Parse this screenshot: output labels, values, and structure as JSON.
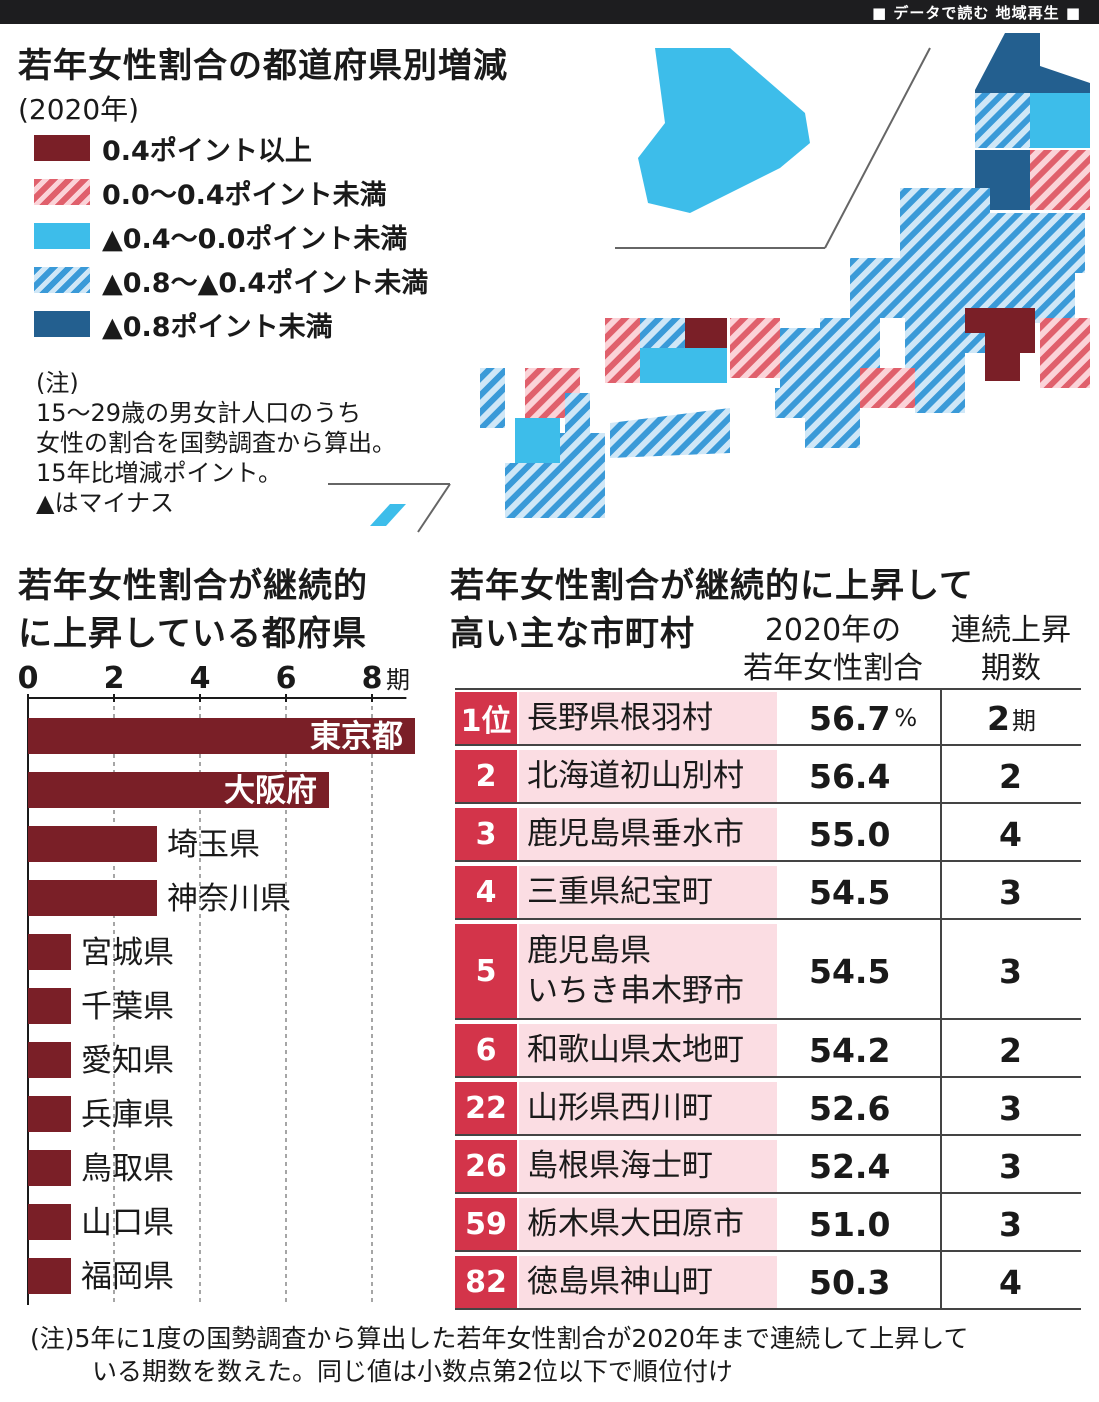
{
  "header": {
    "label": "■ データで読む 地域再生 ■"
  },
  "map_section": {
    "title": "若年女性割合の都道府県別増減",
    "subtitle": "(2020年)",
    "legend": [
      {
        "label": "0.4ポイント以上",
        "color": "#7a1f27",
        "pattern": "solid"
      },
      {
        "label": "0.0〜0.4ポイント未満",
        "color": "#e0606c",
        "pattern": "hatch"
      },
      {
        "label": "▲0.4〜0.0ポイント未満",
        "color": "#3dbdea",
        "pattern": "solid"
      },
      {
        "label": "▲0.8〜▲0.4ポイント未満",
        "color": "#3a9ad8",
        "pattern": "hatch"
      },
      {
        "label": "▲0.8ポイント未満",
        "color": "#235f8f",
        "pattern": "solid"
      }
    ],
    "note": [
      "(注)",
      "15〜29歳の男女計人口のうち",
      "女性の割合を国勢調査から算出。",
      "15年比増減ポイント。",
      "▲はマイナス"
    ]
  },
  "bar_chart_title": [
    "若年女性割合が継続的",
    "に上昇している都府県"
  ],
  "chart_data": [
    {
      "type": "bar",
      "title": "若年女性割合が継続的に上昇している都府県",
      "orientation": "horizontal",
      "categories": [
        "東京都",
        "大阪府",
        "埼玉県",
        "神奈川県",
        "宮城県",
        "千葉県",
        "愛知県",
        "兵庫県",
        "鳥取県",
        "山口県",
        "福岡県"
      ],
      "values": [
        9,
        7,
        3,
        3,
        1,
        1,
        1,
        1,
        1,
        1,
        1
      ],
      "xticks": [
        "0",
        "2",
        "4",
        "6",
        "8"
      ],
      "xunit": "期",
      "xlim": [
        0,
        9
      ],
      "grid": true,
      "bar_color": "#7a1f27"
    }
  ],
  "table_section": {
    "title": [
      "若年女性割合が継続的に上昇して",
      "高い主な市町村"
    ],
    "col_ratio": [
      "2020年の",
      "若年女性割合"
    ],
    "col_periods": [
      "連続上昇",
      "期数"
    ],
    "rows": [
      {
        "rank": "1位",
        "name": [
          "長野県根羽村"
        ],
        "value": "56.7",
        "unit": "%",
        "periods": "2",
        "periods_unit": "期"
      },
      {
        "rank": "2",
        "name": [
          "北海道初山別村"
        ],
        "value": "56.4",
        "unit": "",
        "periods": "2",
        "periods_unit": ""
      },
      {
        "rank": "3",
        "name": [
          "鹿児島県垂水市"
        ],
        "value": "55.0",
        "unit": "",
        "periods": "4",
        "periods_unit": ""
      },
      {
        "rank": "4",
        "name": [
          "三重県紀宝町"
        ],
        "value": "54.5",
        "unit": "",
        "periods": "3",
        "periods_unit": ""
      },
      {
        "rank": "5",
        "name": [
          "鹿児島県",
          "いちき串木野市"
        ],
        "value": "54.5",
        "unit": "",
        "periods": "3",
        "periods_unit": ""
      },
      {
        "rank": "6",
        "name": [
          "和歌山県太地町"
        ],
        "value": "54.2",
        "unit": "",
        "periods": "2",
        "periods_unit": ""
      },
      {
        "rank": "22",
        "name": [
          "山形県西川町"
        ],
        "value": "52.6",
        "unit": "",
        "periods": "3",
        "periods_unit": ""
      },
      {
        "rank": "26",
        "name": [
          "島根県海士町"
        ],
        "value": "52.4",
        "unit": "",
        "periods": "3",
        "periods_unit": ""
      },
      {
        "rank": "59",
        "name": [
          "栃木県大田原市"
        ],
        "value": "51.0",
        "unit": "",
        "periods": "3",
        "periods_unit": ""
      },
      {
        "rank": "82",
        "name": [
          "徳島県神山町"
        ],
        "value": "50.3",
        "unit": "",
        "periods": "4",
        "periods_unit": ""
      }
    ]
  },
  "footnote": [
    "(注)5年に1度の国勢調査から算出した若年女性割合が2020年まで連続して上昇して",
    "いる期数を数えた。同じ値は小数点第2位以下で順位付け"
  ]
}
